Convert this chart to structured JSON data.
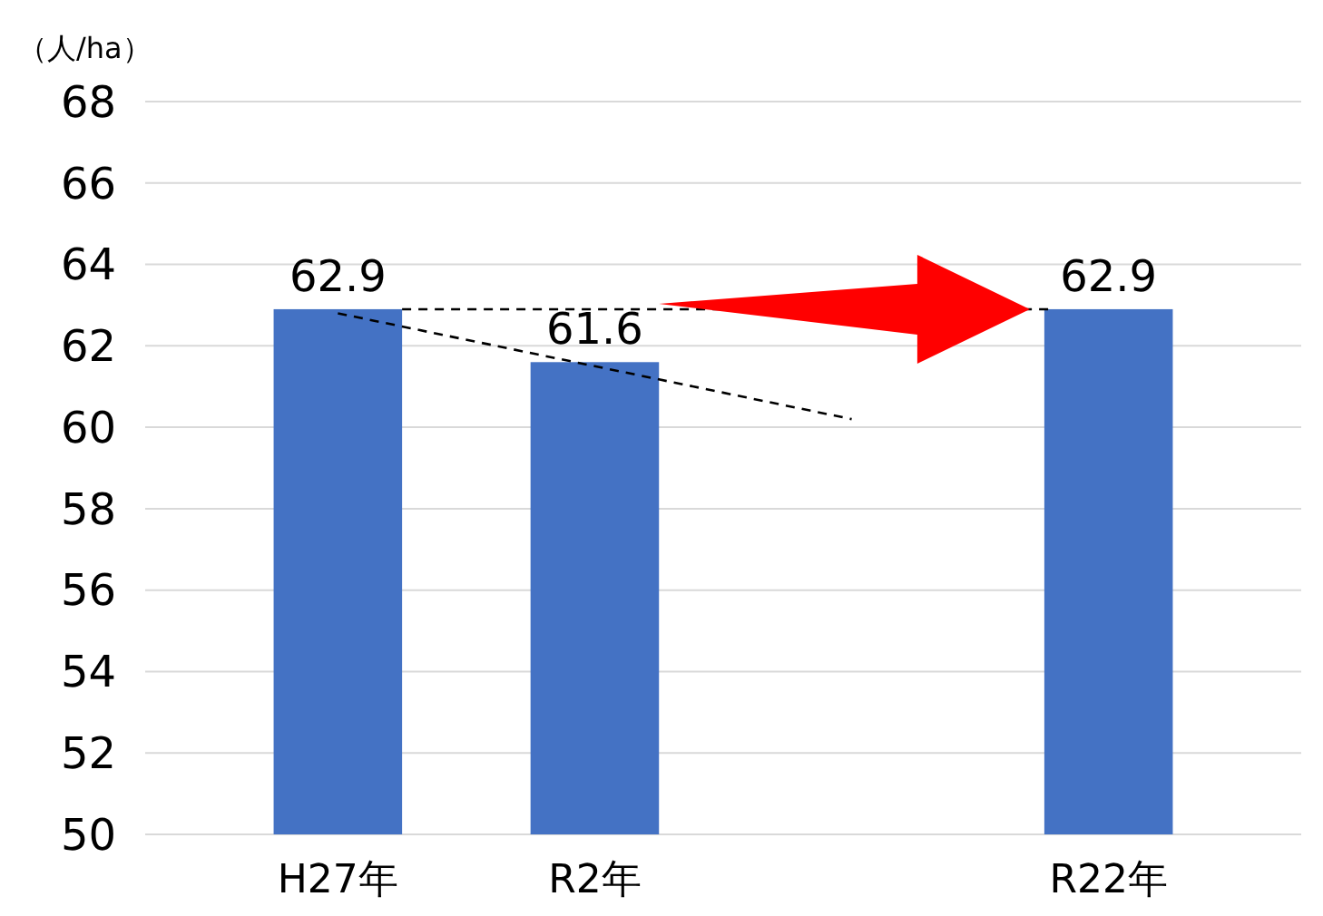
{
  "chart_data": {
    "type": "bar",
    "ylabel": "（人/ha）",
    "categories": [
      "H27年",
      "R2年",
      null,
      "R22年"
    ],
    "series": [
      {
        "color": "#4472c4",
        "values": [
          62.9,
          61.6,
          null,
          62.9
        ],
        "value_labels": [
          "62.9",
          "61.6",
          null,
          "62.9"
        ]
      },
      {
        "type": "line",
        "color": "#000000",
        "line_style": "dashed",
        "marker": "none",
        "values": [
          62.8,
          61.5,
          60.2,
          null
        ]
      }
    ],
    "ref_lines": [
      {
        "axis": "y",
        "value": 62.9,
        "color": "#000000",
        "line_style": "dashed"
      }
    ],
    "ylim": [
      50,
      68
    ],
    "yticks": [
      50,
      52,
      54,
      56,
      58,
      60,
      62,
      64,
      66,
      68
    ],
    "grid": "y"
  }
}
